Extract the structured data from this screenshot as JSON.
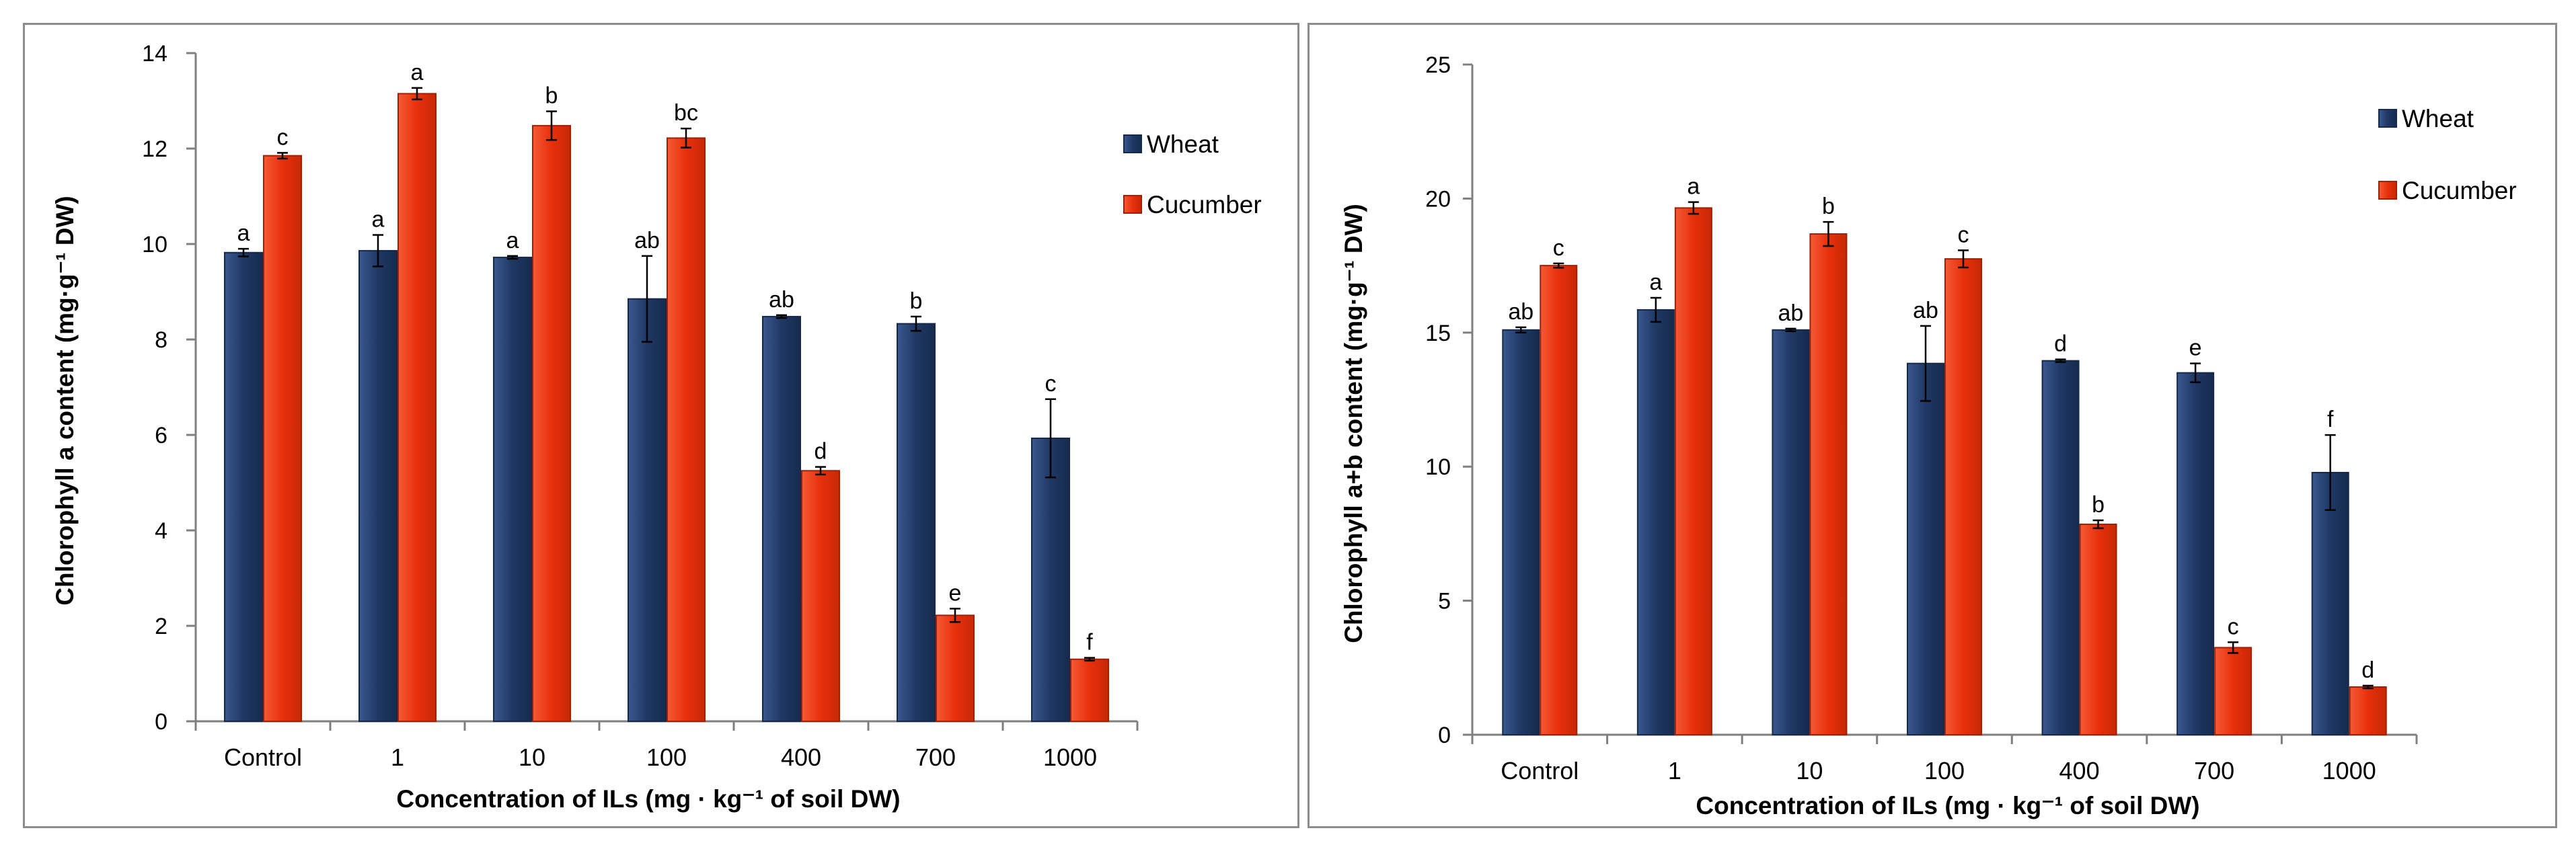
{
  "chart_data": [
    {
      "type": "bar",
      "title": "",
      "xlabel": "Concentration of ILs (mg · kg⁻¹ of soil DW)",
      "ylabel": "Chlorophyll a content  (mg·g⁻¹ DW)",
      "ylim": [
        0,
        14
      ],
      "ytick_step": 2,
      "yticks": [
        "0",
        "2",
        "4",
        "6",
        "8",
        "10",
        "12",
        "14"
      ],
      "categories": [
        "Control",
        "1",
        "10",
        "100",
        "400",
        "700",
        "1000"
      ],
      "legend_position": "top-right",
      "series": [
        {
          "name": "Wheat",
          "color": "#1f3864",
          "values": [
            9.82,
            9.86,
            9.72,
            8.85,
            8.48,
            8.33,
            5.93
          ],
          "errors": [
            0.08,
            0.33,
            0.03,
            0.9,
            0.03,
            0.15,
            0.82
          ],
          "labels": [
            "a",
            "a",
            "a",
            "ab",
            "ab",
            "b",
            "c"
          ]
        },
        {
          "name": "Cucumber",
          "color": "#e8300c",
          "values": [
            11.85,
            13.15,
            12.48,
            12.22,
            5.25,
            2.22,
            1.3
          ],
          "errors": [
            0.06,
            0.12,
            0.3,
            0.2,
            0.08,
            0.14,
            0.03
          ],
          "labels": [
            "c",
            "a",
            "b",
            "bc",
            "d",
            "e",
            "f"
          ]
        }
      ]
    },
    {
      "type": "bar",
      "title": "",
      "xlabel": "Concentration of ILs (mg · kg⁻¹ of soil DW)",
      "ylabel": "Chlorophyll a+b content  (mg·g⁻¹ DW)",
      "ylim": [
        0,
        25
      ],
      "ytick_step": 5,
      "yticks": [
        "0",
        "5",
        "10",
        "15",
        "20",
        "25"
      ],
      "categories": [
        "Control",
        "1",
        "10",
        "100",
        "400",
        "700",
        "1000"
      ],
      "legend_position": "top-right",
      "series": [
        {
          "name": "Wheat",
          "color": "#1f3864",
          "values": [
            15.1,
            15.85,
            15.1,
            13.85,
            13.95,
            13.5,
            9.78
          ],
          "errors": [
            0.1,
            0.45,
            0.05,
            1.4,
            0.05,
            0.35,
            1.4
          ],
          "labels": [
            "ab",
            "a",
            "ab",
            "ab",
            "d",
            "e",
            "f"
          ]
        },
        {
          "name": "Cucumber",
          "color": "#e8300c",
          "values": [
            17.5,
            19.65,
            18.68,
            17.75,
            7.85,
            3.25,
            1.78
          ],
          "errors": [
            0.08,
            0.22,
            0.45,
            0.32,
            0.15,
            0.2,
            0.05
          ],
          "labels": [
            "c",
            "a",
            "b",
            "c",
            "b",
            "c",
            "d"
          ]
        }
      ]
    }
  ]
}
